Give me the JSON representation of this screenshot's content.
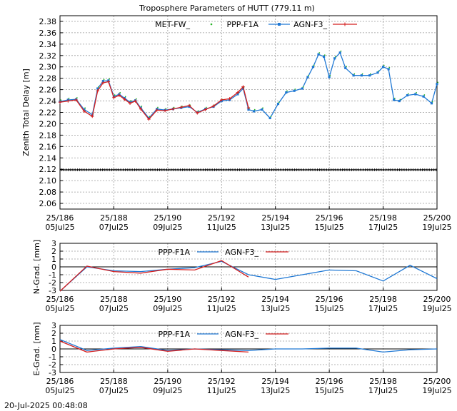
{
  "title": "Troposphere Parameters of HUTT (779.11 m)",
  "footer_timestamp": "20-Jul-2025 00:48:08",
  "x_axis": {
    "ticks": [
      {
        "doy": "25/186",
        "date": "05Jul25"
      },
      {
        "doy": "25/188",
        "date": "07Jul25"
      },
      {
        "doy": "25/190",
        "date": "09Jul25"
      },
      {
        "doy": "25/192",
        "date": "11Jul25"
      },
      {
        "doy": "25/194",
        "date": "13Jul25"
      },
      {
        "doy": "25/196",
        "date": "15Jul25"
      },
      {
        "doy": "25/198",
        "date": "17Jul25"
      },
      {
        "doy": "25/200",
        "date": "19Jul25"
      }
    ],
    "xlim": [
      186,
      200
    ]
  },
  "colors": {
    "met": "#2ab52a",
    "ppp": "#1f78d4",
    "agn": "#d41f1f",
    "ref": "#000000"
  },
  "chart_data": [
    {
      "type": "scatter",
      "ylabel": "Zenith Total Delay [m]",
      "ylim": [
        2.05,
        2.39
      ],
      "yticks": [
        "2.06",
        "2.08",
        "2.10",
        "2.12",
        "2.14",
        "2.16",
        "2.18",
        "2.20",
        "2.22",
        "2.24",
        "2.26",
        "2.28",
        "2.30",
        "2.32",
        "2.34",
        "2.36",
        "2.38"
      ],
      "grid": true,
      "legend": "top",
      "series": [
        {
          "name": "MET-FW_",
          "style": "dots",
          "values": []
        },
        {
          "name": "PPP-F1A",
          "style": "line-points",
          "x": [
            186.0,
            186.3,
            186.6,
            186.9,
            187.2,
            187.4,
            187.6,
            187.8,
            188.0,
            188.2,
            188.4,
            188.6,
            188.8,
            189.0,
            189.3,
            189.6,
            189.9,
            190.2,
            190.5,
            190.8,
            191.1,
            191.4,
            191.7,
            192.0,
            192.3,
            192.6,
            192.8,
            193.0,
            193.2,
            193.5,
            193.8,
            194.1,
            194.4,
            194.7,
            195.0,
            195.2,
            195.4,
            195.6,
            195.8,
            196.0,
            196.2,
            196.4,
            196.6,
            196.9,
            197.2,
            197.5,
            197.8,
            198.0,
            198.2,
            198.4,
            198.6,
            198.9,
            199.2,
            199.5,
            199.8,
            200.0
          ],
          "values": [
            2.239,
            2.242,
            2.243,
            2.225,
            2.216,
            2.262,
            2.275,
            2.276,
            2.248,
            2.252,
            2.245,
            2.238,
            2.241,
            2.228,
            2.21,
            2.226,
            2.224,
            2.226,
            2.228,
            2.23,
            2.22,
            2.226,
            2.23,
            2.24,
            2.242,
            2.252,
            2.262,
            2.225,
            2.222,
            2.225,
            2.21,
            2.235,
            2.255,
            2.258,
            2.262,
            2.282,
            2.3,
            2.322,
            2.318,
            2.282,
            2.315,
            2.325,
            2.298,
            2.285,
            2.285,
            2.285,
            2.29,
            2.3,
            2.296,
            2.242,
            2.24,
            2.25,
            2.252,
            2.248,
            2.236,
            2.27
          ]
        },
        {
          "name": "AGN-F3_",
          "style": "line-points",
          "x": [
            186.0,
            186.3,
            186.6,
            186.9,
            187.2,
            187.4,
            187.6,
            187.8,
            188.0,
            188.2,
            188.4,
            188.6,
            188.8,
            189.0,
            189.3,
            189.6,
            189.9,
            190.2,
            190.5,
            190.8,
            191.1,
            191.4,
            191.7,
            192.0,
            192.3,
            192.6,
            192.8,
            193.0
          ],
          "values": [
            2.238,
            2.24,
            2.242,
            2.222,
            2.213,
            2.258,
            2.272,
            2.274,
            2.246,
            2.25,
            2.243,
            2.236,
            2.24,
            2.226,
            2.208,
            2.224,
            2.223,
            2.226,
            2.229,
            2.232,
            2.219,
            2.225,
            2.231,
            2.242,
            2.244,
            2.255,
            2.265,
            2.228
          ]
        },
        {
          "name": "",
          "style": "reference-line",
          "values": [
            2.119
          ]
        }
      ]
    },
    {
      "type": "line",
      "ylabel": "N-Grad. [mm]",
      "ylim": [
        -3,
        3
      ],
      "yticks": [
        "-3",
        "-2",
        "-1",
        "0",
        "1",
        "2",
        "3"
      ],
      "grid": true,
      "legend": "top",
      "series": [
        {
          "name": "PPP-F1A",
          "x": [
            186.0,
            187.0,
            188.0,
            189.0,
            190.0,
            191.0,
            192.0,
            193.0,
            194.0,
            195.0,
            196.0,
            197.0,
            198.0,
            199.0,
            200.0
          ],
          "values": [
            -3.1,
            0.0,
            -0.5,
            -0.6,
            -0.3,
            -0.1,
            0.7,
            -1.0,
            -1.6,
            -1.0,
            -0.4,
            -0.5,
            -1.8,
            0.2,
            -1.5
          ]
        },
        {
          "name": "AGN-F3_",
          "x": [
            186.0,
            187.0,
            188.0,
            189.0,
            190.0,
            191.0,
            192.0,
            193.0
          ],
          "values": [
            -3.1,
            0.1,
            -0.6,
            -0.8,
            -0.3,
            -0.4,
            0.8,
            -1.3
          ]
        }
      ]
    },
    {
      "type": "line",
      "ylabel": "E-Grad. [mm]",
      "ylim": [
        -3,
        3
      ],
      "yticks": [
        "-3",
        "-2",
        "-1",
        "0",
        "1",
        "2",
        "3"
      ],
      "grid": true,
      "legend": "top",
      "series": [
        {
          "name": "PPP-F1A",
          "x": [
            186.0,
            187.0,
            188.0,
            189.0,
            190.0,
            191.0,
            192.0,
            193.0,
            194.0,
            195.0,
            196.0,
            197.0,
            198.0,
            199.0,
            200.0
          ],
          "values": [
            1.2,
            -0.2,
            0.1,
            0.3,
            -0.2,
            0.0,
            -0.1,
            -0.2,
            0.0,
            0.0,
            0.1,
            0.1,
            -0.4,
            -0.1,
            0.0
          ]
        },
        {
          "name": "AGN-F3_",
          "x": [
            186.0,
            187.0,
            188.0,
            189.0,
            190.0,
            191.0,
            192.0,
            193.0
          ],
          "values": [
            1.0,
            -0.4,
            0.0,
            0.2,
            -0.3,
            0.0,
            -0.2,
            -0.4
          ]
        }
      ]
    }
  ]
}
